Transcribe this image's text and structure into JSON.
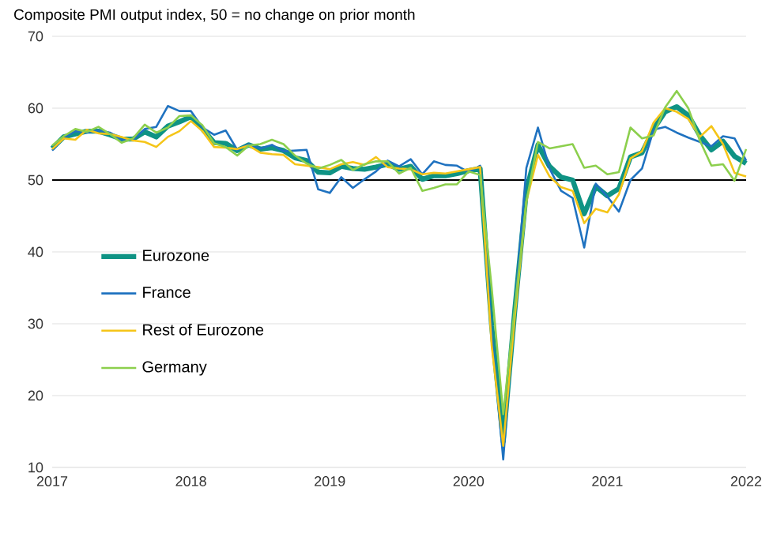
{
  "chart_data": {
    "type": "line",
    "title": "Composite PMI output index, 50 = no change on prior month",
    "x": [
      "2017-01",
      "2017-02",
      "2017-03",
      "2017-04",
      "2017-05",
      "2017-06",
      "2017-07",
      "2017-08",
      "2017-09",
      "2017-10",
      "2017-11",
      "2017-12",
      "2018-01",
      "2018-02",
      "2018-03",
      "2018-04",
      "2018-05",
      "2018-06",
      "2018-07",
      "2018-08",
      "2018-09",
      "2018-10",
      "2018-11",
      "2018-12",
      "2019-01",
      "2019-02",
      "2019-03",
      "2019-04",
      "2019-05",
      "2019-06",
      "2019-07",
      "2019-08",
      "2019-09",
      "2019-10",
      "2019-11",
      "2019-12",
      "2020-01",
      "2020-02",
      "2020-03",
      "2020-04",
      "2020-05",
      "2020-06",
      "2020-07",
      "2020-08",
      "2020-09",
      "2020-10",
      "2020-11",
      "2020-12",
      "2021-01",
      "2021-02",
      "2021-03",
      "2021-04",
      "2021-05",
      "2021-06",
      "2021-07",
      "2021-08",
      "2021-09",
      "2021-10",
      "2021-11",
      "2021-12",
      "2022-01"
    ],
    "series": [
      {
        "name": "Eurozone",
        "color": "#0f9384",
        "values": [
          54.4,
          56.0,
          56.4,
          56.8,
          56.8,
          56.3,
          55.7,
          55.7,
          56.7,
          56.0,
          57.5,
          58.1,
          58.8,
          57.1,
          55.2,
          55.1,
          54.1,
          54.9,
          54.3,
          54.5,
          54.1,
          53.1,
          52.7,
          51.1,
          51.0,
          51.9,
          51.6,
          51.5,
          51.8,
          52.2,
          51.5,
          51.9,
          50.1,
          50.6,
          50.6,
          50.9,
          51.3,
          51.6,
          29.7,
          13.6,
          31.9,
          48.5,
          54.9,
          51.9,
          50.4,
          50.0,
          45.3,
          49.1,
          47.8,
          48.8,
          53.2,
          53.8,
          57.1,
          59.5,
          60.2,
          59.0,
          56.2,
          54.2,
          55.4,
          53.3,
          52.3
        ]
      },
      {
        "name": "France",
        "color": "#1f72c0",
        "values": [
          54.1,
          55.9,
          56.8,
          56.6,
          56.9,
          56.6,
          55.6,
          55.6,
          57.1,
          57.4,
          60.3,
          59.6,
          59.6,
          57.3,
          56.3,
          56.9,
          54.2,
          55.0,
          54.4,
          54.9,
          54.0,
          54.1,
          54.2,
          48.7,
          48.2,
          50.4,
          48.9,
          50.1,
          51.2,
          52.7,
          51.9,
          52.9,
          50.8,
          52.6,
          52.1,
          52.0,
          51.1,
          52.0,
          28.9,
          11.1,
          32.1,
          51.7,
          57.3,
          51.6,
          48.5,
          47.5,
          40.6,
          49.5,
          47.7,
          45.6,
          50.0,
          51.6,
          57.0,
          57.4,
          56.6,
          55.9,
          55.3,
          54.7,
          56.1,
          55.8,
          52.7
        ]
      },
      {
        "name": "Rest of Eurozone",
        "color": "#f5c518",
        "values": [
          54.3,
          55.8,
          55.6,
          57.0,
          56.5,
          56.4,
          56.0,
          55.5,
          55.3,
          54.6,
          56.0,
          56.8,
          58.2,
          56.8,
          54.6,
          54.5,
          54.3,
          54.8,
          53.8,
          53.6,
          53.5,
          52.2,
          52.0,
          51.8,
          51.5,
          52.2,
          52.5,
          52.1,
          53.2,
          51.8,
          51.6,
          51.5,
          50.8,
          51.0,
          50.9,
          51.2,
          51.5,
          51.8,
          27.0,
          13.0,
          31.0,
          47.0,
          53.5,
          50.5,
          49.0,
          48.5,
          44.0,
          46.0,
          45.5,
          48.0,
          53.0,
          54.0,
          58.0,
          60.0,
          59.5,
          58.5,
          56.0,
          57.5,
          55.0,
          51.0,
          50.5
        ]
      },
      {
        "name": "Germany",
        "color": "#8ccf4d",
        "values": [
          54.8,
          56.1,
          57.1,
          56.7,
          57.4,
          56.4,
          55.2,
          55.8,
          57.7,
          56.6,
          57.3,
          58.9,
          59.0,
          57.6,
          55.1,
          54.6,
          53.4,
          54.8,
          55.0,
          55.6,
          55.0,
          53.4,
          52.3,
          51.6,
          52.1,
          52.8,
          51.4,
          52.2,
          52.6,
          52.6,
          50.9,
          51.7,
          48.5,
          48.9,
          49.4,
          49.4,
          51.2,
          50.7,
          35.0,
          17.4,
          32.3,
          47.0,
          55.3,
          54.4,
          54.7,
          55.0,
          51.7,
          52.0,
          50.8,
          51.1,
          57.3,
          55.8,
          56.2,
          60.1,
          62.4,
          60.0,
          55.5,
          52.0,
          52.2,
          49.9,
          54.3
        ]
      }
    ],
    "xlim": [
      "2017-01",
      "2022-01"
    ],
    "xticks": [
      {
        "value": "2017",
        "label": "2017"
      },
      {
        "value": "2018",
        "label": "2018"
      },
      {
        "value": "2019",
        "label": "2019"
      },
      {
        "value": "2020",
        "label": "2020"
      },
      {
        "value": "2021",
        "label": "2021"
      },
      {
        "value": "2022",
        "label": "2022"
      }
    ],
    "ylim": [
      10,
      70
    ],
    "yticks": [
      10,
      20,
      30,
      40,
      50,
      60,
      70
    ],
    "ref_lines": [
      {
        "axis": "y",
        "value": 50,
        "color": "#000000"
      }
    ],
    "grid": "y",
    "legend": "left",
    "line_style": "solid",
    "marker": "none"
  }
}
